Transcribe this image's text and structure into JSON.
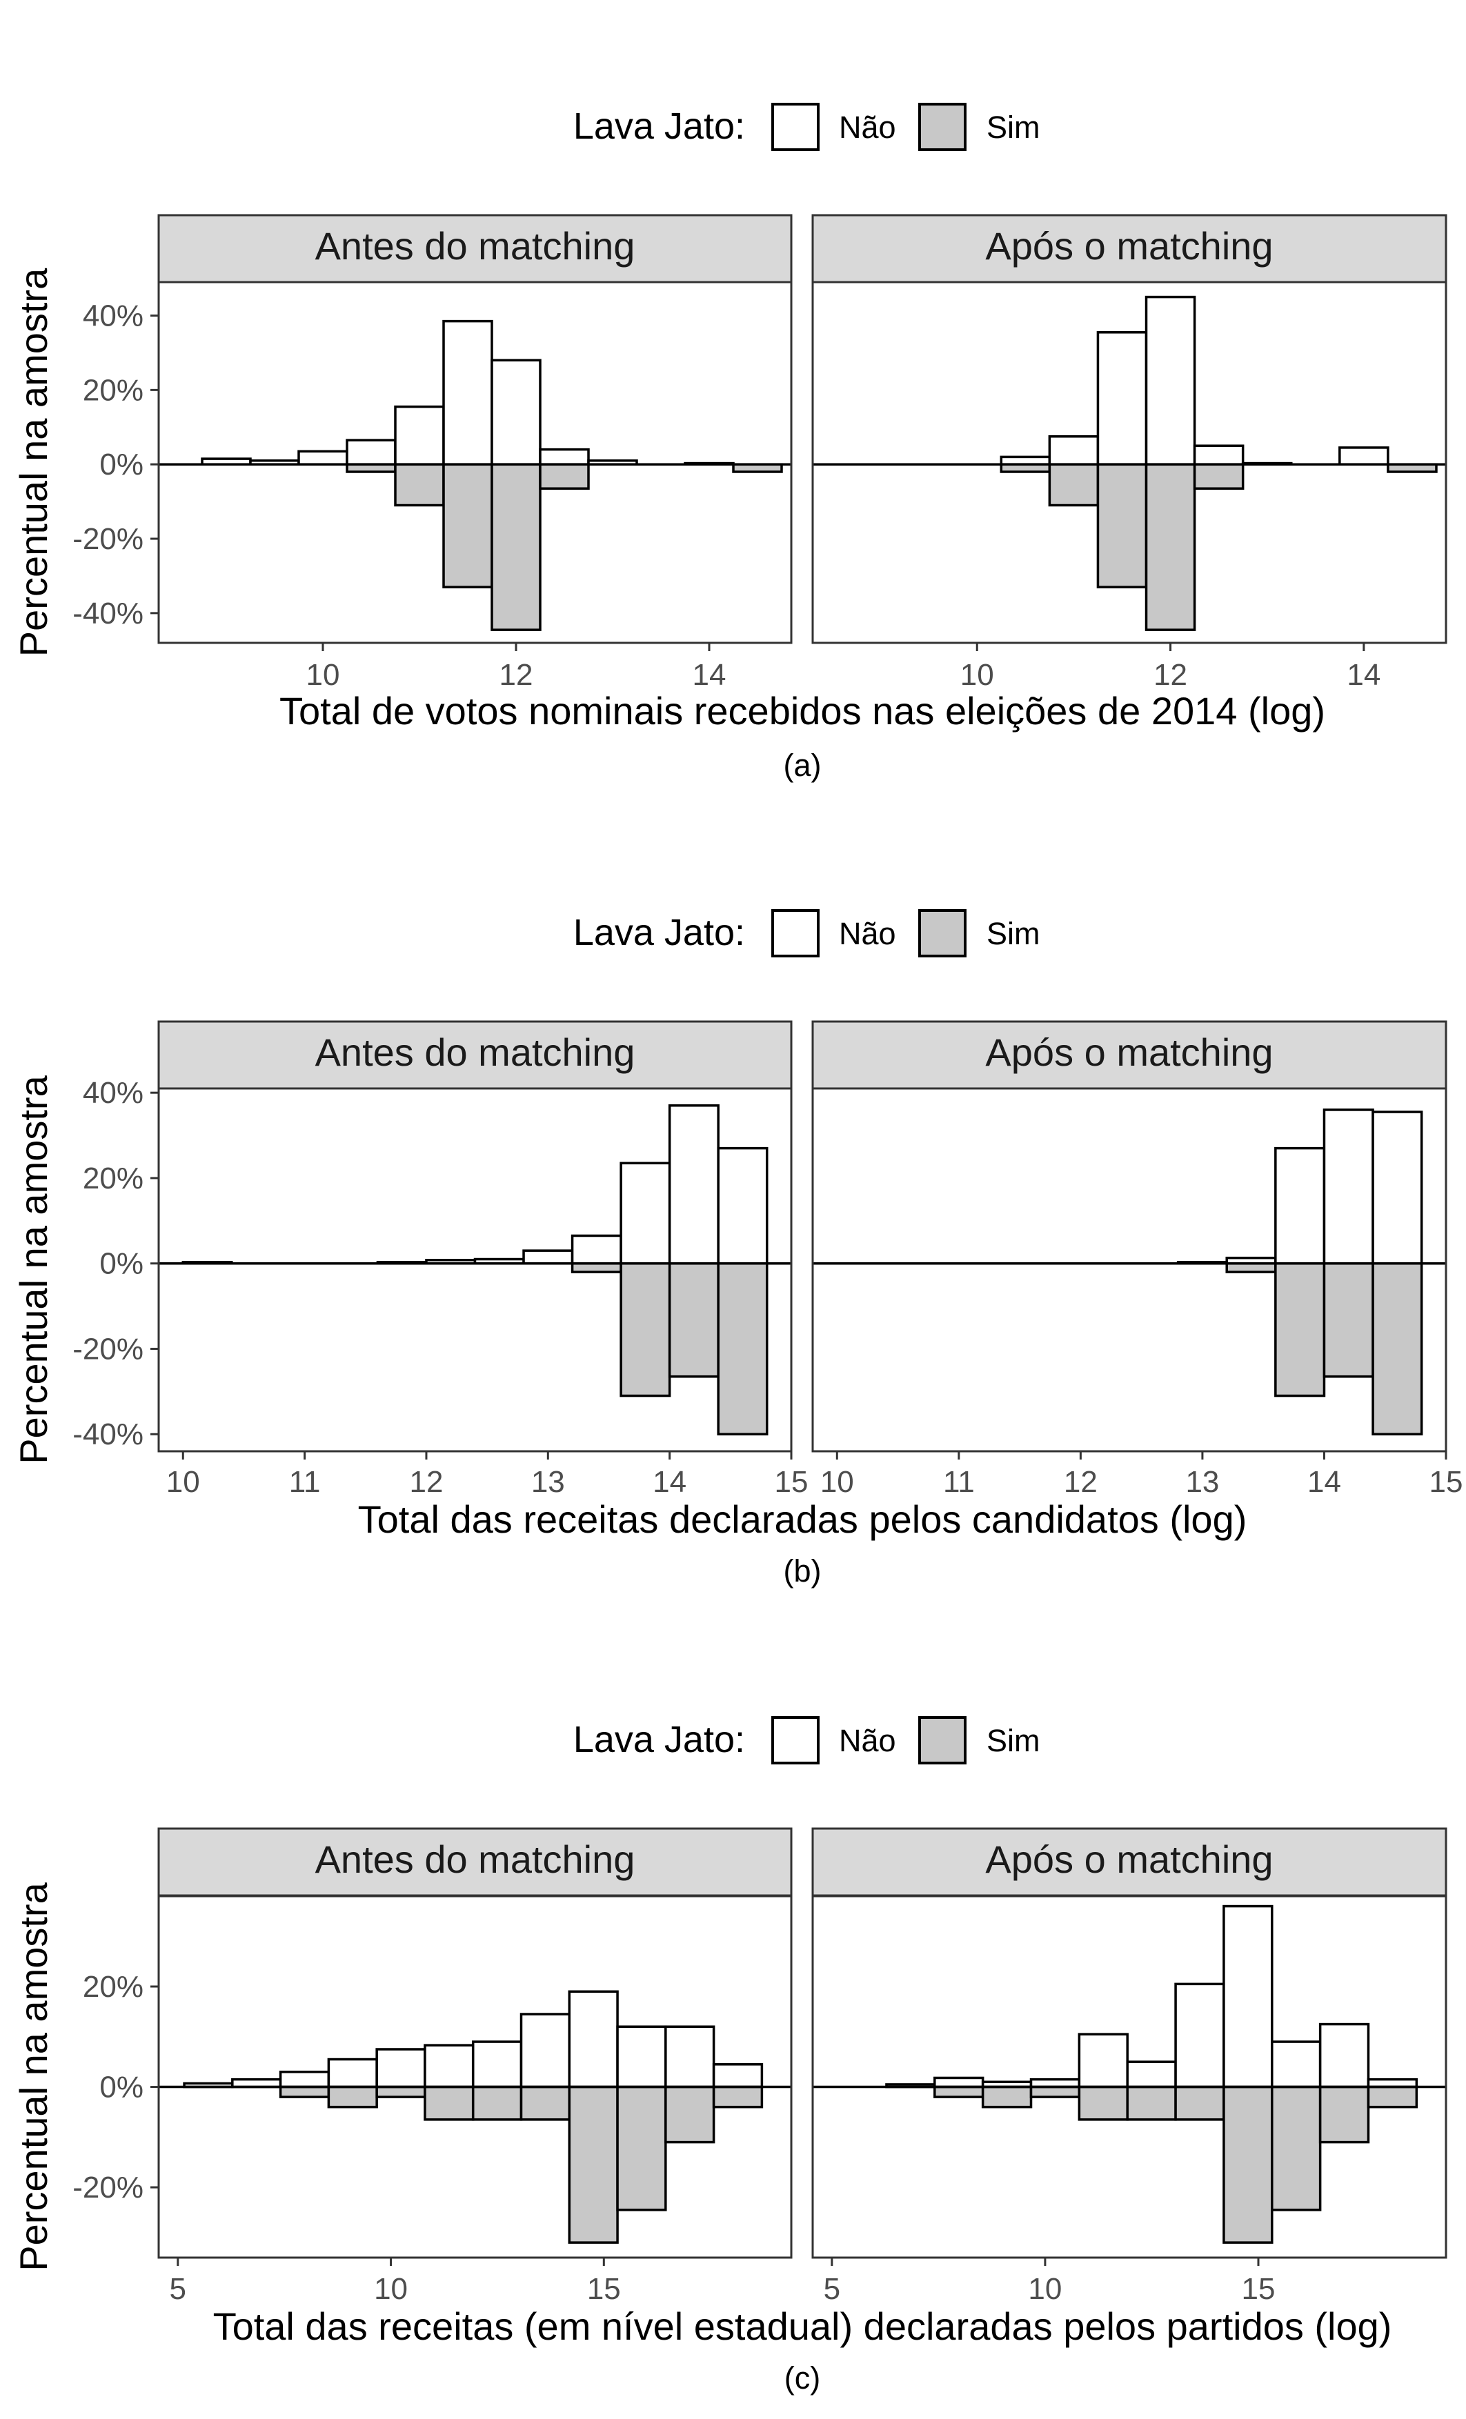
{
  "legend": {
    "title": "Lava Jato:",
    "items": [
      {
        "label": "Não",
        "color": "#ffffff"
      },
      {
        "label": "Sim",
        "color": "#c8c8c8"
      }
    ]
  },
  "colors": {
    "nao": "#ffffff",
    "sim": "#c8c8c8",
    "strip": "#d9d9d9",
    "stroke": "#000000",
    "tick_text": "#4d4d4d"
  },
  "y_axis_title": "Percentual na amostra",
  "panel_titles": [
    "Antes do matching",
    "Após o matching"
  ],
  "chart_data": [
    {
      "id": "a",
      "caption": "(a)",
      "type": "bar",
      "subtype": "mirrored-histogram",
      "xlabel": "Total de votos nominais recebidos nas eleições de 2014 (log)",
      "ylabel": "Percentual na amostra",
      "xlim": [
        8.3,
        14.85
      ],
      "ylim": [
        -48,
        49
      ],
      "xticks": [
        10,
        12,
        14
      ],
      "yticks": [
        40,
        20,
        0,
        -20,
        -40
      ],
      "ytick_labels": [
        "40%",
        "20%",
        "0%",
        "-20%",
        "-40%"
      ],
      "bin_edges": [
        8.75,
        9.25,
        9.75,
        10.25,
        10.75,
        11.25,
        11.75,
        12.25,
        12.75,
        13.25,
        13.75,
        14.25,
        14.75
      ],
      "panels": [
        {
          "title": "Antes do matching",
          "series": [
            {
              "name": "Não",
              "values": [
                1.5,
                1,
                3.5,
                6.5,
                15.5,
                38.5,
                28,
                4,
                1,
                0,
                0.3,
                0
              ]
            },
            {
              "name": "Sim",
              "values": [
                0,
                0,
                0,
                2,
                11,
                33,
                44.5,
                6.5,
                0,
                0,
                0,
                2
              ]
            }
          ]
        },
        {
          "title": "Após o matching",
          "series": [
            {
              "name": "Não",
              "values": [
                0,
                0,
                0,
                2,
                7.5,
                35.5,
                45,
                5,
                0.3,
                0,
                4.5,
                0
              ]
            },
            {
              "name": "Sim",
              "values": [
                0,
                0,
                0,
                2,
                11,
                33,
                44.5,
                6.5,
                0,
                0,
                0,
                2
              ]
            }
          ]
        }
      ]
    },
    {
      "id": "b",
      "caption": "(b)",
      "type": "bar",
      "subtype": "mirrored-histogram",
      "xlabel": "Total das receitas declaradas pelos candidatos (log)",
      "ylabel": "Percentual na amostra",
      "xlim": [
        9.8,
        15
      ],
      "ylim": [
        -44,
        41
      ],
      "xticks": [
        10,
        11,
        12,
        13,
        14,
        15
      ],
      "yticks": [
        40,
        20,
        0,
        -20,
        -40
      ],
      "ytick_labels": [
        "40%",
        "20%",
        "0%",
        "-20%",
        "-40%"
      ],
      "bin_edges": [
        10,
        10.4,
        10.8,
        11.2,
        11.6,
        12,
        12.4,
        12.8,
        13.2,
        13.6,
        14,
        14.4,
        14.8
      ],
      "panels": [
        {
          "title": "Antes do matching",
          "series": [
            {
              "name": "Não",
              "values": [
                0.3,
                0,
                0,
                0,
                0.3,
                0.8,
                1,
                3,
                6.5,
                23.5,
                37,
                27
              ]
            },
            {
              "name": "Sim",
              "values": [
                0,
                0,
                0,
                0,
                0,
                0,
                0,
                0,
                2,
                31,
                26.5,
                40
              ]
            }
          ]
        },
        {
          "title": "Após o matching",
          "series": [
            {
              "name": "Não",
              "values": [
                0,
                0,
                0,
                0,
                0,
                0,
                0,
                0.3,
                1.3,
                27,
                36,
                35.5
              ]
            },
            {
              "name": "Sim",
              "values": [
                0,
                0,
                0,
                0,
                0,
                0,
                0,
                0,
                2,
                31,
                26.5,
                40
              ]
            }
          ]
        }
      ]
    },
    {
      "id": "c",
      "caption": "(c)",
      "type": "bar",
      "subtype": "mirrored-histogram",
      "xlabel": "Total das receitas (em nível estadual) declaradas pelos partidos (log)",
      "ylabel": "Percentual na amostra",
      "xlim": [
        4.55,
        19.4
      ],
      "ylim": [
        -34,
        38
      ],
      "xticks": [
        5,
        10,
        15
      ],
      "yticks": [
        20,
        0,
        -20
      ],
      "ytick_labels": [
        "20%",
        "0%",
        "-20%"
      ],
      "bin_edges": [
        5.15,
        6.28,
        7.41,
        8.54,
        9.67,
        10.8,
        11.93,
        13.06,
        14.19,
        15.32,
        16.45,
        17.58,
        18.71
      ],
      "panels": [
        {
          "title": "Antes do matching",
          "series": [
            {
              "name": "Não",
              "values": [
                0.7,
                1.5,
                3,
                5.5,
                7.5,
                8.3,
                9,
                14.5,
                19,
                12,
                12,
                4.5
              ]
            },
            {
              "name": "Sim",
              "values": [
                0,
                0,
                2,
                4,
                2,
                6.5,
                6.5,
                6.5,
                31,
                24.5,
                11,
                4
              ]
            }
          ]
        },
        {
          "title": "Após o matching",
          "series": [
            {
              "name": "Não",
              "values": [
                0,
                0.5,
                1.8,
                1,
                1.5,
                10.5,
                5,
                20.5,
                36,
                9,
                12.5,
                1.5
              ]
            },
            {
              "name": "Sim",
              "values": [
                0,
                0,
                2,
                4,
                2,
                6.5,
                6.5,
                6.5,
                31,
                24.5,
                11,
                4
              ]
            }
          ]
        }
      ]
    }
  ]
}
